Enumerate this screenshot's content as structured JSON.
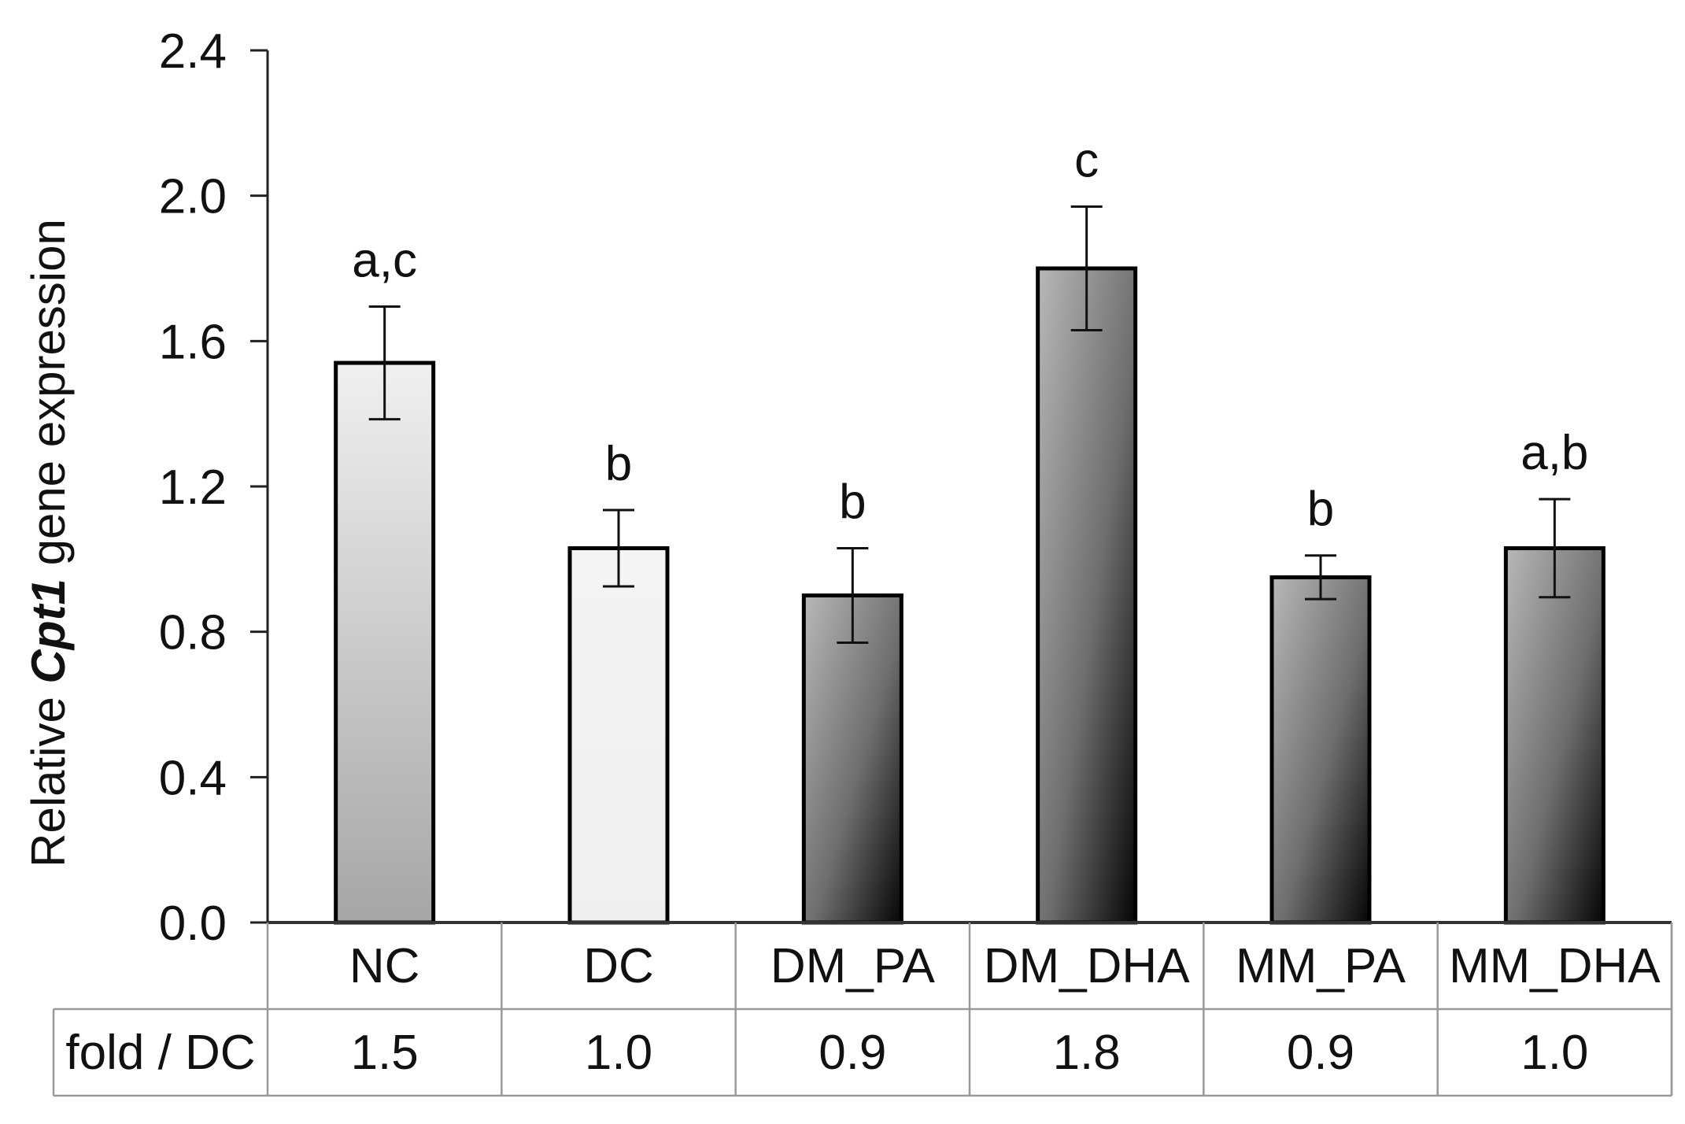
{
  "chart_data": {
    "type": "bar",
    "ylabel_prefix": "Relative ",
    "ylabel_gene": "Cpt1",
    "ylabel_suffix": " gene  expression",
    "ylim": [
      0,
      2.4
    ],
    "yticks": [
      "0.0",
      "0.4",
      "0.8",
      "1.2",
      "1.6",
      "2.0",
      "2.4"
    ],
    "grid": false,
    "categories": [
      "NC",
      "DC",
      "DM_PA",
      "DM_DHA",
      "MM_PA",
      "MM_DHA"
    ],
    "values": [
      1.54,
      1.03,
      0.9,
      1.8,
      0.95,
      1.03
    ],
    "errors": [
      0.155,
      0.105,
      0.13,
      0.17,
      0.06,
      0.135
    ],
    "significance": [
      "a,c",
      "b",
      "b",
      "c",
      "b",
      "a,b"
    ],
    "fill_styles": [
      "light",
      "lightest",
      "dark",
      "dark",
      "dark",
      "dark"
    ],
    "table": {
      "row_header": "fold / DC",
      "fold_values": [
        "1.5",
        "1.0",
        "0.9",
        "1.8",
        "0.9",
        "1.0"
      ]
    }
  }
}
